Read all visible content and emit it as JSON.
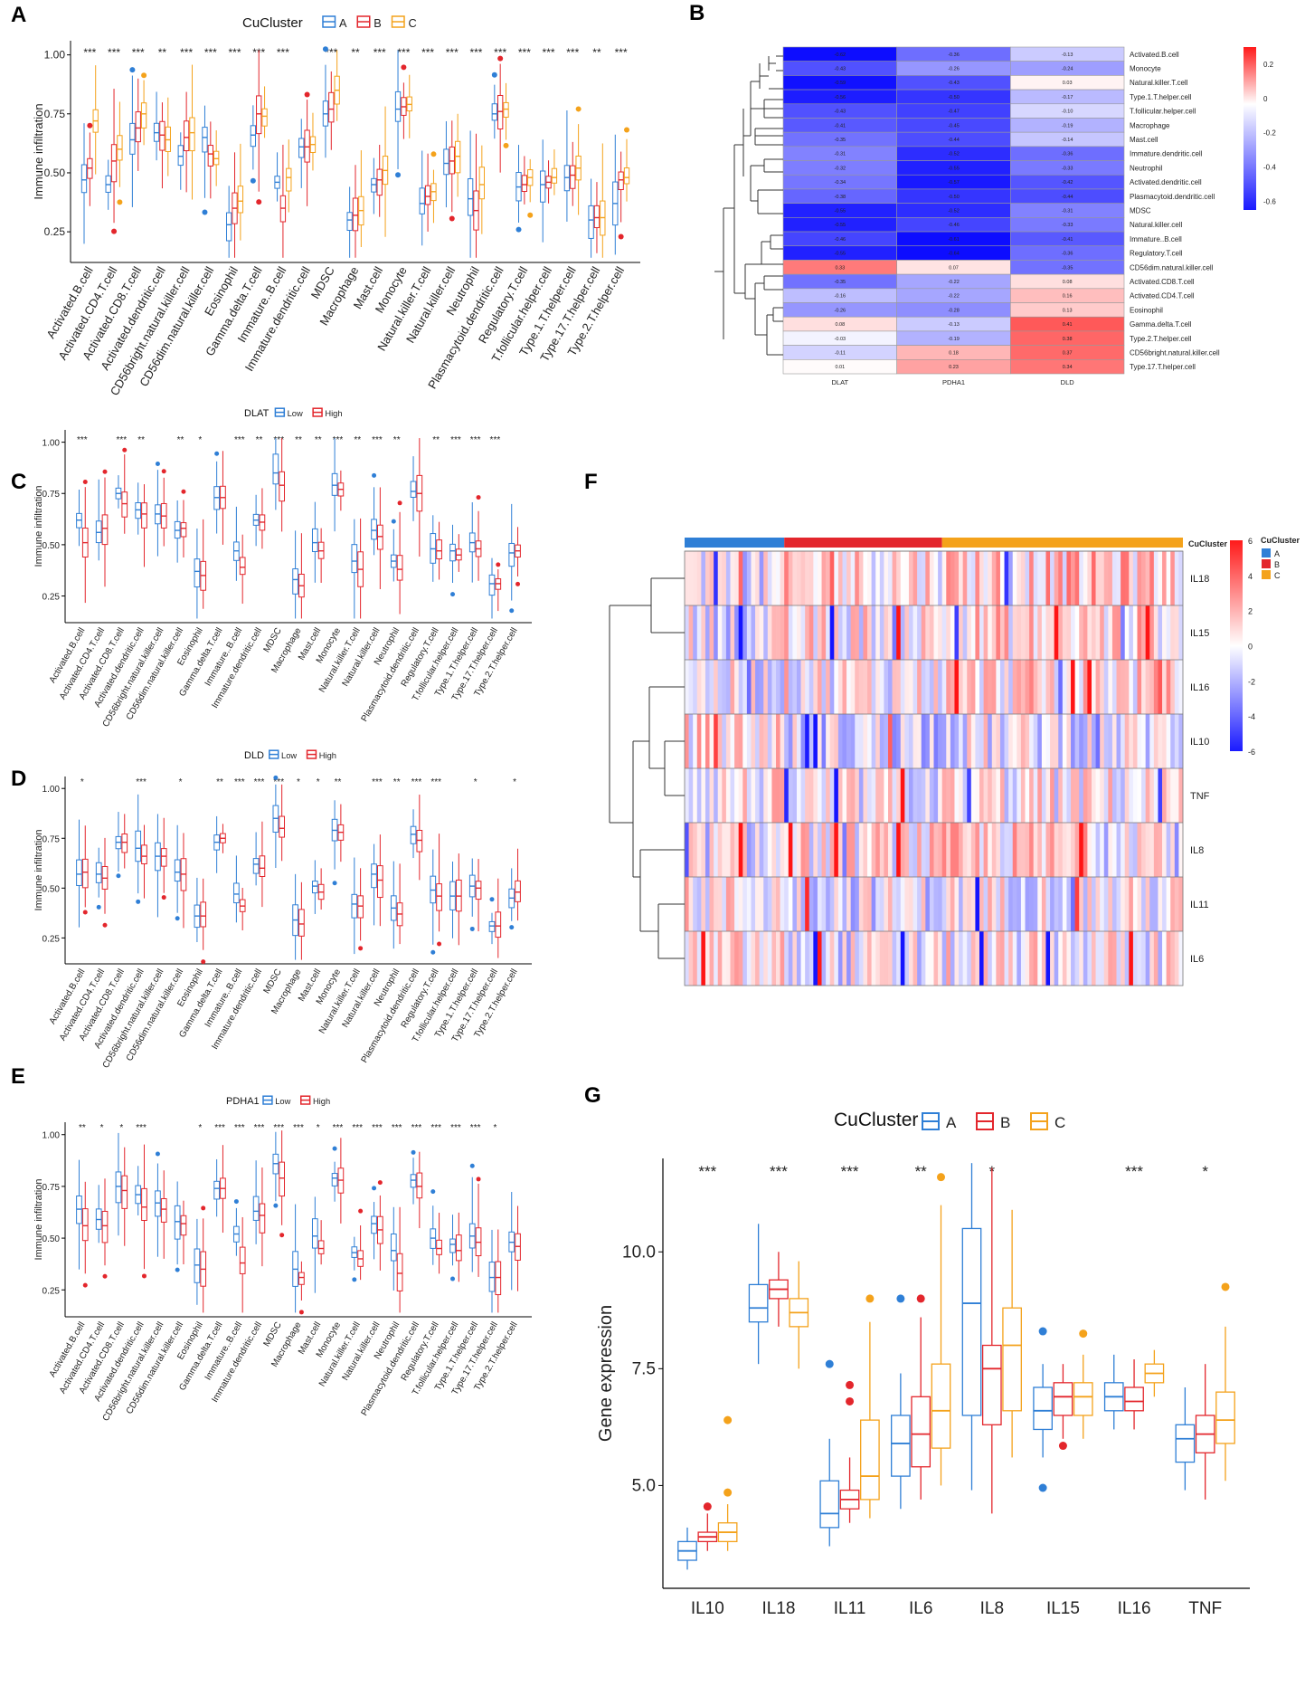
{
  "panels": {
    "A": "A",
    "B": "B",
    "C": "C",
    "D": "D",
    "E": "E",
    "F": "F",
    "G": "G"
  },
  "colors": {
    "A": "#2f7fd6",
    "B": "#e3262c",
    "C": "#f4a21b",
    "Low": "#2f7fd6",
    "High": "#e3262c",
    "heat_high": "#ff1a1a",
    "heat_low": "#1a1aff"
  },
  "cells_ABC": [
    "Activated.B.cell",
    "Activated.CD4.T.cell",
    "Activated.CD8.T.cell",
    "Activated.dendritic.cell",
    "CD56bright.natural.killer.cell",
    "CD56dim.natural.killer.cell",
    "Eosinophil",
    "Gamma.delta.T.cell",
    "Immature..B.cell",
    "Immature.dendritic.cell",
    "MDSC",
    "Macrophage",
    "Mast.cell",
    "Monocyte",
    "Natural.killer.T.cell",
    "Natural.killer.cell",
    "Neutrophil",
    "Plasmacytoid.dendritic.cell",
    "Regulatory.T.cell",
    "T.follicular.helper.cell",
    "Type.1.T.helper.cell",
    "Type.17.T.helper.cell",
    "Type.2.T.helper.cell"
  ],
  "cells_CDE": [
    "Activated.B.cell",
    "Activated.CD4.T.cell",
    "Activated.CD8.T.cell",
    "Activated.dendritic.cell",
    "CD56bright.natural.killer.cell",
    "CD56dim.natural.killer.cell",
    "Eosinophil",
    "Gamma.delta.T.cell",
    "Immature..B.cell",
    "Immature.dendritic.cell",
    "MDSC",
    "Macrophage",
    "Mast.cell",
    "Monocyte",
    "Natural.killer.T.cell",
    "Natural.killer.cell",
    "Neutrophil",
    "Plasmacytoid.dendritic.cell",
    "Regulatory.T.cell",
    "T.follicular.helper.cell",
    "Type.1.T.helper.cell",
    "Type.17.T.helper.cell",
    "Type.2.T.helper.cell"
  ],
  "chart_data": [
    {
      "id": "A",
      "type": "boxplot",
      "legend_title": "CuCluster",
      "groups": [
        "A",
        "B",
        "C"
      ],
      "ylabel": "Immune infiltration",
      "ylim": [
        0.12,
        1.06
      ],
      "yticks": [
        "0.25",
        "0.50",
        "0.75",
        "1.00"
      ],
      "sig": [
        "***",
        "***",
        "***",
        "**",
        "***",
        "***",
        "***",
        "***",
        "***",
        "",
        "***",
        "**",
        "***",
        "***",
        "***",
        "***",
        "***",
        "***",
        "***",
        "***",
        "***",
        "**",
        "***"
      ],
      "medians": [
        [
          0.47,
          0.52,
          0.72
        ],
        [
          0.45,
          0.55,
          0.6
        ],
        [
          0.64,
          0.69,
          0.75
        ],
        [
          0.67,
          0.66,
          0.64
        ],
        [
          0.57,
          0.65,
          0.67
        ],
        [
          0.65,
          0.58,
          0.56
        ],
        [
          0.28,
          0.35,
          0.38
        ],
        [
          0.66,
          0.75,
          0.74
        ],
        [
          0.46,
          0.35,
          0.48
        ],
        [
          0.61,
          0.61,
          0.62
        ],
        [
          0.75,
          0.77,
          0.85
        ],
        [
          0.3,
          0.32,
          0.34
        ],
        [
          0.45,
          0.47,
          0.51
        ],
        [
          0.77,
          0.78,
          0.79
        ],
        [
          0.37,
          0.4,
          0.42
        ],
        [
          0.54,
          0.55,
          0.57
        ],
        [
          0.39,
          0.34,
          0.45
        ],
        [
          0.75,
          0.76,
          0.77
        ],
        [
          0.44,
          0.45,
          0.48
        ],
        [
          0.45,
          0.46,
          0.48
        ],
        [
          0.48,
          0.49,
          0.52
        ],
        [
          0.3,
          0.31,
          0.31
        ],
        [
          0.37,
          0.47,
          0.48
        ]
      ]
    },
    {
      "id": "B",
      "type": "heatmap",
      "title": "",
      "columns": [
        "DLAT",
        "PDHA1",
        "DLD"
      ],
      "rows": [
        "Activated.B.cell",
        "Monocyte",
        "Natural.killer.T.cell",
        "Type.1.T.helper.cell",
        "T.follicular.helper.cell",
        "Macrophage",
        "Mast.cell",
        "Immature.dendritic.cell",
        "Neutrophil",
        "Activated.dendritic.cell",
        "Plasmacytoid.dendritic.cell",
        "MDSC",
        "Natural.killer.cell",
        "Immature..B.cell",
        "Regulatory.T.cell",
        "CD56dim.natural.killer.cell",
        "Activated.CD8.T.cell",
        "Activated.CD4.T.cell",
        "Eosinophil",
        "Gamma.delta.T.cell",
        "Type.2.T.helper.cell",
        "CD56bright.natural.killer.cell",
        "Type.17.T.helper.cell"
      ],
      "values": [
        [
          -0.62,
          -0.36,
          -0.13
        ],
        [
          -0.43,
          -0.26,
          -0.24
        ],
        [
          -0.59,
          -0.43,
          0.03
        ],
        [
          -0.56,
          -0.5,
          -0.17
        ],
        [
          -0.43,
          -0.47,
          -0.1
        ],
        [
          -0.41,
          -0.45,
          -0.19
        ],
        [
          -0.35,
          -0.44,
          -0.14
        ],
        [
          -0.31,
          -0.52,
          -0.36
        ],
        [
          -0.32,
          -0.55,
          -0.33
        ],
        [
          -0.34,
          -0.57,
          -0.42
        ],
        [
          -0.38,
          -0.5,
          -0.44
        ],
        [
          -0.55,
          -0.52,
          -0.31
        ],
        [
          -0.55,
          -0.46,
          -0.33
        ],
        [
          -0.46,
          -0.61,
          -0.41
        ],
        [
          -0.55,
          -0.64,
          -0.36
        ],
        [
          0.33,
          0.07,
          -0.35
        ],
        [
          -0.35,
          -0.22,
          0.08
        ],
        [
          -0.16,
          -0.22,
          0.16
        ],
        [
          -0.26,
          -0.28,
          0.13
        ],
        [
          0.08,
          -0.13,
          0.41
        ],
        [
          -0.03,
          -0.19,
          0.38
        ],
        [
          -0.11,
          0.18,
          0.37
        ],
        [
          0.01,
          0.23,
          0.34
        ]
      ],
      "legend_ticks": [
        "0.2",
        "0",
        "-0.2",
        "-0.4",
        "-0.6"
      ],
      "legend_values": [
        0.2,
        0,
        -0.2,
        -0.4,
        -0.6
      ]
    },
    {
      "id": "C",
      "type": "boxplot",
      "legend_title": "DLAT",
      "groups": [
        "Low",
        "High"
      ],
      "ylabel": "Immune infiltration",
      "ylim": [
        0.12,
        1.06
      ],
      "yticks": [
        "0.25",
        "0.50",
        "0.75",
        "1.00"
      ],
      "sig": [
        "***",
        "",
        "***",
        "**",
        "",
        "**",
        "*",
        "",
        "***",
        "**",
        "***",
        "**",
        "**",
        "***",
        "**",
        "***",
        "**",
        "",
        "**",
        "***",
        "***",
        "***",
        ""
      ],
      "medians": [
        [
          0.62,
          0.51
        ],
        [
          0.56,
          0.58
        ],
        [
          0.75,
          0.7
        ],
        [
          0.67,
          0.65
        ],
        [
          0.65,
          0.64
        ],
        [
          0.57,
          0.58
        ],
        [
          0.37,
          0.35
        ],
        [
          0.73,
          0.73
        ],
        [
          0.47,
          0.39
        ],
        [
          0.62,
          0.61
        ],
        [
          0.85,
          0.79
        ],
        [
          0.33,
          0.3
        ],
        [
          0.51,
          0.47
        ],
        [
          0.79,
          0.77
        ],
        [
          0.42,
          0.38
        ],
        [
          0.57,
          0.54
        ],
        [
          0.42,
          0.38
        ],
        [
          0.76,
          0.75
        ],
        [
          0.48,
          0.47
        ],
        [
          0.47,
          0.45
        ],
        [
          0.51,
          0.48
        ],
        [
          0.31,
          0.31
        ],
        [
          0.46,
          0.47
        ]
      ]
    },
    {
      "id": "D",
      "type": "boxplot",
      "legend_title": "DLD",
      "groups": [
        "Low",
        "High"
      ],
      "ylabel": "Immune infiltration",
      "ylim": [
        0.12,
        1.06
      ],
      "yticks": [
        "0.25",
        "0.50",
        "0.75",
        "1.00"
      ],
      "sig": [
        "*",
        "",
        "",
        "***",
        "",
        "*",
        "",
        "**",
        "***",
        "***",
        "***",
        "*",
        "*",
        "**",
        "",
        "***",
        "**",
        "***",
        "***",
        "",
        "*",
        "",
        "*"
      ],
      "medians": [
        [
          0.57,
          0.58
        ],
        [
          0.57,
          0.55
        ],
        [
          0.73,
          0.73
        ],
        [
          0.7,
          0.66
        ],
        [
          0.66,
          0.66
        ],
        [
          0.58,
          0.57
        ],
        [
          0.36,
          0.36
        ],
        [
          0.73,
          0.75
        ],
        [
          0.47,
          0.41
        ],
        [
          0.62,
          0.6
        ],
        [
          0.85,
          0.8
        ],
        [
          0.34,
          0.32
        ],
        [
          0.51,
          0.48
        ],
        [
          0.79,
          0.78
        ],
        [
          0.42,
          0.41
        ],
        [
          0.57,
          0.54
        ],
        [
          0.4,
          0.37
        ],
        [
          0.77,
          0.74
        ],
        [
          0.49,
          0.46
        ],
        [
          0.46,
          0.46
        ],
        [
          0.51,
          0.5
        ],
        [
          0.31,
          0.31
        ],
        [
          0.45,
          0.48
        ]
      ]
    },
    {
      "id": "E",
      "type": "boxplot",
      "legend_title": "PDHA1",
      "groups": [
        "Low",
        "High"
      ],
      "ylabel": "Immune infiltration",
      "ylim": [
        0.12,
        1.06
      ],
      "yticks": [
        "0.25",
        "0.50",
        "0.75",
        "1.00"
      ],
      "sig": [
        "**",
        "*",
        "*",
        "***",
        "",
        "",
        "*",
        "***",
        "***",
        "***",
        "***",
        "***",
        "*",
        "***",
        "***",
        "***",
        "***",
        "***",
        "***",
        "***",
        "***",
        "*",
        ""
      ],
      "medians": [
        [
          0.64,
          0.56
        ],
        [
          0.59,
          0.56
        ],
        [
          0.75,
          0.73
        ],
        [
          0.71,
          0.65
        ],
        [
          0.67,
          0.64
        ],
        [
          0.58,
          0.57
        ],
        [
          0.37,
          0.35
        ],
        [
          0.74,
          0.74
        ],
        [
          0.52,
          0.38
        ],
        [
          0.63,
          0.61
        ],
        [
          0.86,
          0.79
        ],
        [
          0.35,
          0.31
        ],
        [
          0.51,
          0.45
        ],
        [
          0.79,
          0.78
        ],
        [
          0.43,
          0.4
        ],
        [
          0.57,
          0.54
        ],
        [
          0.44,
          0.33
        ],
        [
          0.78,
          0.75
        ],
        [
          0.5,
          0.45
        ],
        [
          0.47,
          0.44
        ],
        [
          0.51,
          0.48
        ],
        [
          0.31,
          0.31
        ],
        [
          0.48,
          0.46
        ]
      ]
    },
    {
      "id": "F",
      "type": "heatmap",
      "annotation_title": "CuCluster",
      "legend_title": "CuCluster",
      "legend_groups": [
        "A",
        "B",
        "C"
      ],
      "rows": [
        "IL18",
        "IL15",
        "IL16",
        "IL10",
        "TNF",
        "IL8",
        "IL11",
        "IL6"
      ],
      "group_sizes": [
        24,
        38,
        58
      ],
      "scale_ticks": [
        "6",
        "4",
        "2",
        "0",
        "-2",
        "-4",
        "-6"
      ],
      "scale_values": [
        6,
        4,
        2,
        0,
        -2,
        -4,
        -6
      ]
    },
    {
      "id": "G",
      "type": "boxplot",
      "legend_title": "CuCluster",
      "groups": [
        "A",
        "B",
        "C"
      ],
      "ylabel": "Gene expression",
      "ylim": [
        2.8,
        12.0
      ],
      "yticks": [
        "5.0",
        "7.5",
        "10.0"
      ],
      "ytick_values": [
        5.0,
        7.5,
        10.0
      ],
      "categories": [
        "IL10",
        "IL18",
        "IL11",
        "IL6",
        "IL8",
        "IL15",
        "IL16",
        "TNF"
      ],
      "sig": [
        "***",
        "***",
        "***",
        "**",
        "*",
        "",
        "***",
        "*"
      ],
      "series": [
        {
          "name": "A",
          "q1": [
            3.4,
            8.5,
            4.1,
            5.2,
            6.5,
            6.2,
            6.6,
            5.5
          ],
          "median": [
            3.6,
            8.8,
            4.4,
            5.9,
            8.9,
            6.6,
            6.9,
            6.0
          ],
          "q3": [
            3.8,
            9.3,
            5.1,
            6.5,
            10.5,
            7.1,
            7.2,
            6.3
          ],
          "min": [
            3.2,
            7.6,
            3.7,
            4.5,
            4.9,
            5.6,
            6.2,
            4.9
          ],
          "max": [
            4.1,
            10.6,
            6.0,
            7.4,
            11.9,
            7.6,
            7.8,
            7.1
          ]
        },
        {
          "name": "B",
          "q1": [
            3.8,
            9.0,
            4.5,
            5.4,
            6.3,
            6.5,
            6.6,
            5.7
          ],
          "median": [
            3.9,
            9.2,
            4.7,
            6.1,
            7.5,
            6.9,
            6.8,
            6.1
          ],
          "q3": [
            4.0,
            9.4,
            4.9,
            6.9,
            8.0,
            7.2,
            7.1,
            6.5
          ],
          "min": [
            3.6,
            8.4,
            4.2,
            4.7,
            4.4,
            6.0,
            6.2,
            4.7
          ],
          "max": [
            4.4,
            10.0,
            5.6,
            8.6,
            11.8,
            7.6,
            7.7,
            7.6
          ]
        },
        {
          "name": "C",
          "q1": [
            3.8,
            8.4,
            4.7,
            5.8,
            6.6,
            6.5,
            7.2,
            5.9
          ],
          "median": [
            4.0,
            8.7,
            5.2,
            6.6,
            8.0,
            6.9,
            7.4,
            6.4
          ],
          "q3": [
            4.2,
            9.0,
            6.4,
            7.6,
            8.8,
            7.2,
            7.6,
            7.0
          ],
          "min": [
            3.6,
            7.5,
            4.3,
            5.0,
            5.6,
            6.0,
            6.9,
            5.1
          ],
          "max": [
            4.6,
            9.8,
            8.5,
            11.0,
            10.9,
            7.8,
            7.9,
            8.4
          ]
        }
      ],
      "outliers": [
        {
          "group": 1,
          "cat": 0,
          "value": 4.55
        },
        {
          "group": 2,
          "cat": 0,
          "value": 6.4
        },
        {
          "group": 2,
          "cat": 0,
          "value": 4.85
        },
        {
          "group": 0,
          "cat": 2,
          "value": 7.6
        },
        {
          "group": 1,
          "cat": 2,
          "value": 7.15
        },
        {
          "group": 1,
          "cat": 2,
          "value": 6.8
        },
        {
          "group": 2,
          "cat": 2,
          "value": 9.0
        },
        {
          "group": 0,
          "cat": 3,
          "value": 9.0
        },
        {
          "group": 1,
          "cat": 3,
          "value": 9.0
        },
        {
          "group": 2,
          "cat": 3,
          "value": 11.6
        },
        {
          "group": 0,
          "cat": 5,
          "value": 8.3
        },
        {
          "group": 0,
          "cat": 5,
          "value": 4.95
        },
        {
          "group": 1,
          "cat": 5,
          "value": 5.85
        },
        {
          "group": 2,
          "cat": 5,
          "value": 8.25
        },
        {
          "group": 2,
          "cat": 7,
          "value": 9.25
        }
      ]
    }
  ]
}
